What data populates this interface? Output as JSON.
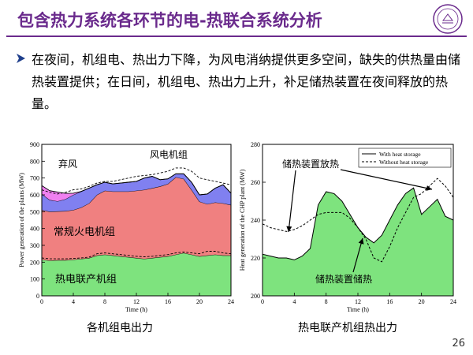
{
  "slide": {
    "title": "包含热力系统各环节的电-热联合系统分析",
    "bullet": "在夜间，机组电、热出力下降，为风电消纳提供更多空间，缺失的供热量由储热装置提供；在日间，机组电、热出力上升，补足储热装置在夜间释放的热量。",
    "page_number": "26",
    "colors": {
      "title": "#6a2a8c",
      "chp": "#7ee37e",
      "thermal": "#f08080",
      "wind": "#8080f0",
      "curtail": "#f080f0",
      "heat_fill": "#7ee37e"
    }
  },
  "chart_data": [
    {
      "type": "area",
      "caption": "各机组电出力",
      "ylabel": "Power generation of the plants (MW)",
      "xlabel": "Time (h)",
      "xlim": [
        0,
        24
      ],
      "ylim": [
        0,
        900
      ],
      "xticks": [
        0,
        4,
        8,
        12,
        16,
        20,
        24
      ],
      "yticks": [
        0,
        100,
        200,
        300,
        400,
        500,
        600,
        700,
        800,
        900
      ],
      "x": [
        0,
        1,
        2,
        3,
        4,
        5,
        6,
        7,
        8,
        9,
        10,
        11,
        12,
        13,
        14,
        15,
        16,
        17,
        18,
        19,
        20,
        21,
        22,
        23,
        24
      ],
      "series": [
        {
          "name": "热电联产机组",
          "values": [
            215,
            210,
            212,
            212,
            215,
            220,
            225,
            240,
            245,
            240,
            235,
            230,
            225,
            220,
            225,
            230,
            235,
            245,
            255,
            245,
            235,
            240,
            245,
            240,
            240
          ]
        },
        {
          "name": "常规火电机组",
          "values": [
            295,
            290,
            290,
            292,
            295,
            305,
            325,
            360,
            380,
            380,
            385,
            390,
            400,
            410,
            415,
            420,
            430,
            460,
            440,
            385,
            325,
            305,
            310,
            310,
            300
          ]
        },
        {
          "name": "风电机组",
          "values": [
            95,
            70,
            60,
            70,
            90,
            95,
            90,
            60,
            50,
            45,
            50,
            55,
            55,
            70,
            70,
            40,
            30,
            20,
            30,
            45,
            40,
            60,
            85,
            110,
            70
          ]
        },
        {
          "name": "弃风",
          "values": [
            50,
            55,
            55,
            35,
            10,
            0,
            0,
            0,
            0,
            0,
            0,
            0,
            0,
            0,
            0,
            0,
            0,
            0,
            0,
            0,
            0,
            0,
            0,
            0,
            0
          ]
        }
      ],
      "dashed_lines": [
        {
          "values": [
            225,
            220,
            220,
            220,
            222,
            225,
            230,
            250,
            255,
            250,
            245,
            240,
            235,
            232,
            235,
            240,
            245,
            255,
            260,
            255,
            250,
            265,
            265,
            255,
            250
          ]
        },
        {
          "values": [
            630,
            615,
            605,
            615,
            630,
            635,
            650,
            670,
            680,
            680,
            690,
            700,
            710,
            715,
            720,
            730,
            740,
            760,
            760,
            740,
            700,
            690,
            680,
            670,
            660
          ]
        }
      ],
      "annotations": [
        "弃风",
        "风电机组",
        "常规火电机组",
        "热电联产机组"
      ]
    },
    {
      "type": "area",
      "caption": "热电联产机组热出力",
      "ylabel": "Heat generation of the CHP plant (MW)",
      "xlabel": "Time (h)",
      "xlim": [
        0,
        24
      ],
      "ylim": [
        200,
        280
      ],
      "xticks": [
        0,
        4,
        8,
        12,
        16,
        20,
        24
      ],
      "yticks": [
        200,
        220,
        240,
        260,
        280
      ],
      "legend": [
        "With heat storage",
        "Without heat storage"
      ],
      "legend_position": "top-right",
      "x": [
        0,
        1,
        2,
        3,
        4,
        5,
        6,
        7,
        8,
        9,
        10,
        11,
        12,
        13,
        14,
        15,
        16,
        17,
        18,
        19,
        20,
        21,
        22,
        23,
        24
      ],
      "series": [
        {
          "name": "With heat storage",
          "values": [
            222,
            221,
            220,
            220,
            219,
            221,
            225,
            248,
            255,
            254,
            250,
            243,
            236,
            231,
            228,
            232,
            240,
            248,
            254,
            257,
            243,
            247,
            251,
            242,
            240
          ]
        },
        {
          "name": "Without heat storage",
          "values": [
            238,
            236,
            235,
            234,
            235,
            237,
            240,
            243,
            244,
            244,
            244,
            241,
            236,
            230,
            220,
            218,
            226,
            236,
            244,
            252,
            254,
            258,
            262,
            258,
            252
          ]
        }
      ],
      "annotations": [
        "储热装置放热",
        "储热装置储热"
      ]
    }
  ]
}
